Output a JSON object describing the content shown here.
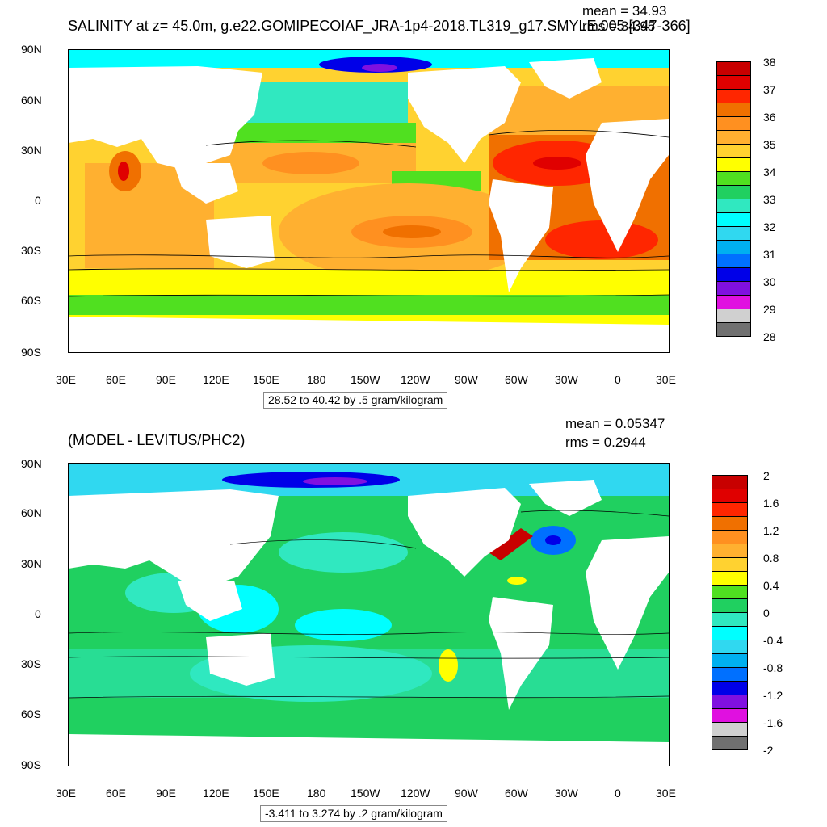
{
  "panel1": {
    "title": "SALINITY at z=  45.0m, g.e22.GOMIPECOIAF_JRA-1p4-2018.TL319_g17.SMYLE.005 [347-366]",
    "mean": "mean = 34.93",
    "rms": "rms = 34.95",
    "units_note": "28.52 to 40.42 by .5 gram/kilogram",
    "colorbar": {
      "colors": [
        "#c80000",
        "#e00000",
        "#ff2600",
        "#f07000",
        "#ff9020",
        "#ffb030",
        "#ffd230",
        "#ffff00",
        "#50e020",
        "#20d060",
        "#30e8c0",
        "#00ffff",
        "#30d8f0",
        "#00b0f0",
        "#0070ff",
        "#0000e8",
        "#8010e0",
        "#e010e0",
        "#d0d0d0",
        "#707070"
      ],
      "labels": [
        "38",
        "37",
        "36",
        "35",
        "34",
        "33",
        "32",
        "31",
        "30",
        "29",
        "28"
      ]
    }
  },
  "panel2": {
    "title": "(MODEL - LEVITUS/PHC2)",
    "mean": "mean = 0.05347",
    "rms": "rms = 0.2944",
    "units_note": "-3.411 to 3.274 by .2 gram/kilogram",
    "colorbar": {
      "colors": [
        "#c80000",
        "#e00000",
        "#ff2600",
        "#f07000",
        "#ff9020",
        "#ffb030",
        "#ffd230",
        "#ffff00",
        "#50e020",
        "#20d060",
        "#30e8c0",
        "#00ffff",
        "#30d8f0",
        "#00b0f0",
        "#0070ff",
        "#0000e8",
        "#8010e0",
        "#e010e0",
        "#d0d0d0",
        "#707070"
      ],
      "labels": [
        "2",
        "1.6",
        "1.2",
        "0.8",
        "0.4",
        "0",
        "-0.4",
        "-0.8",
        "-1.2",
        "-1.6",
        "-2"
      ]
    }
  },
  "axes": {
    "lat_labels": [
      "90N",
      "60N",
      "30N",
      "0",
      "30S",
      "60S",
      "90S"
    ],
    "lon_labels": [
      "30E",
      "60E",
      "90E",
      "120E",
      "150E",
      "180",
      "150W",
      "120W",
      "90W",
      "60W",
      "30W",
      "0",
      "30E"
    ]
  },
  "map_colors": {
    "land": "#ffffff",
    "contour": "#000000"
  }
}
